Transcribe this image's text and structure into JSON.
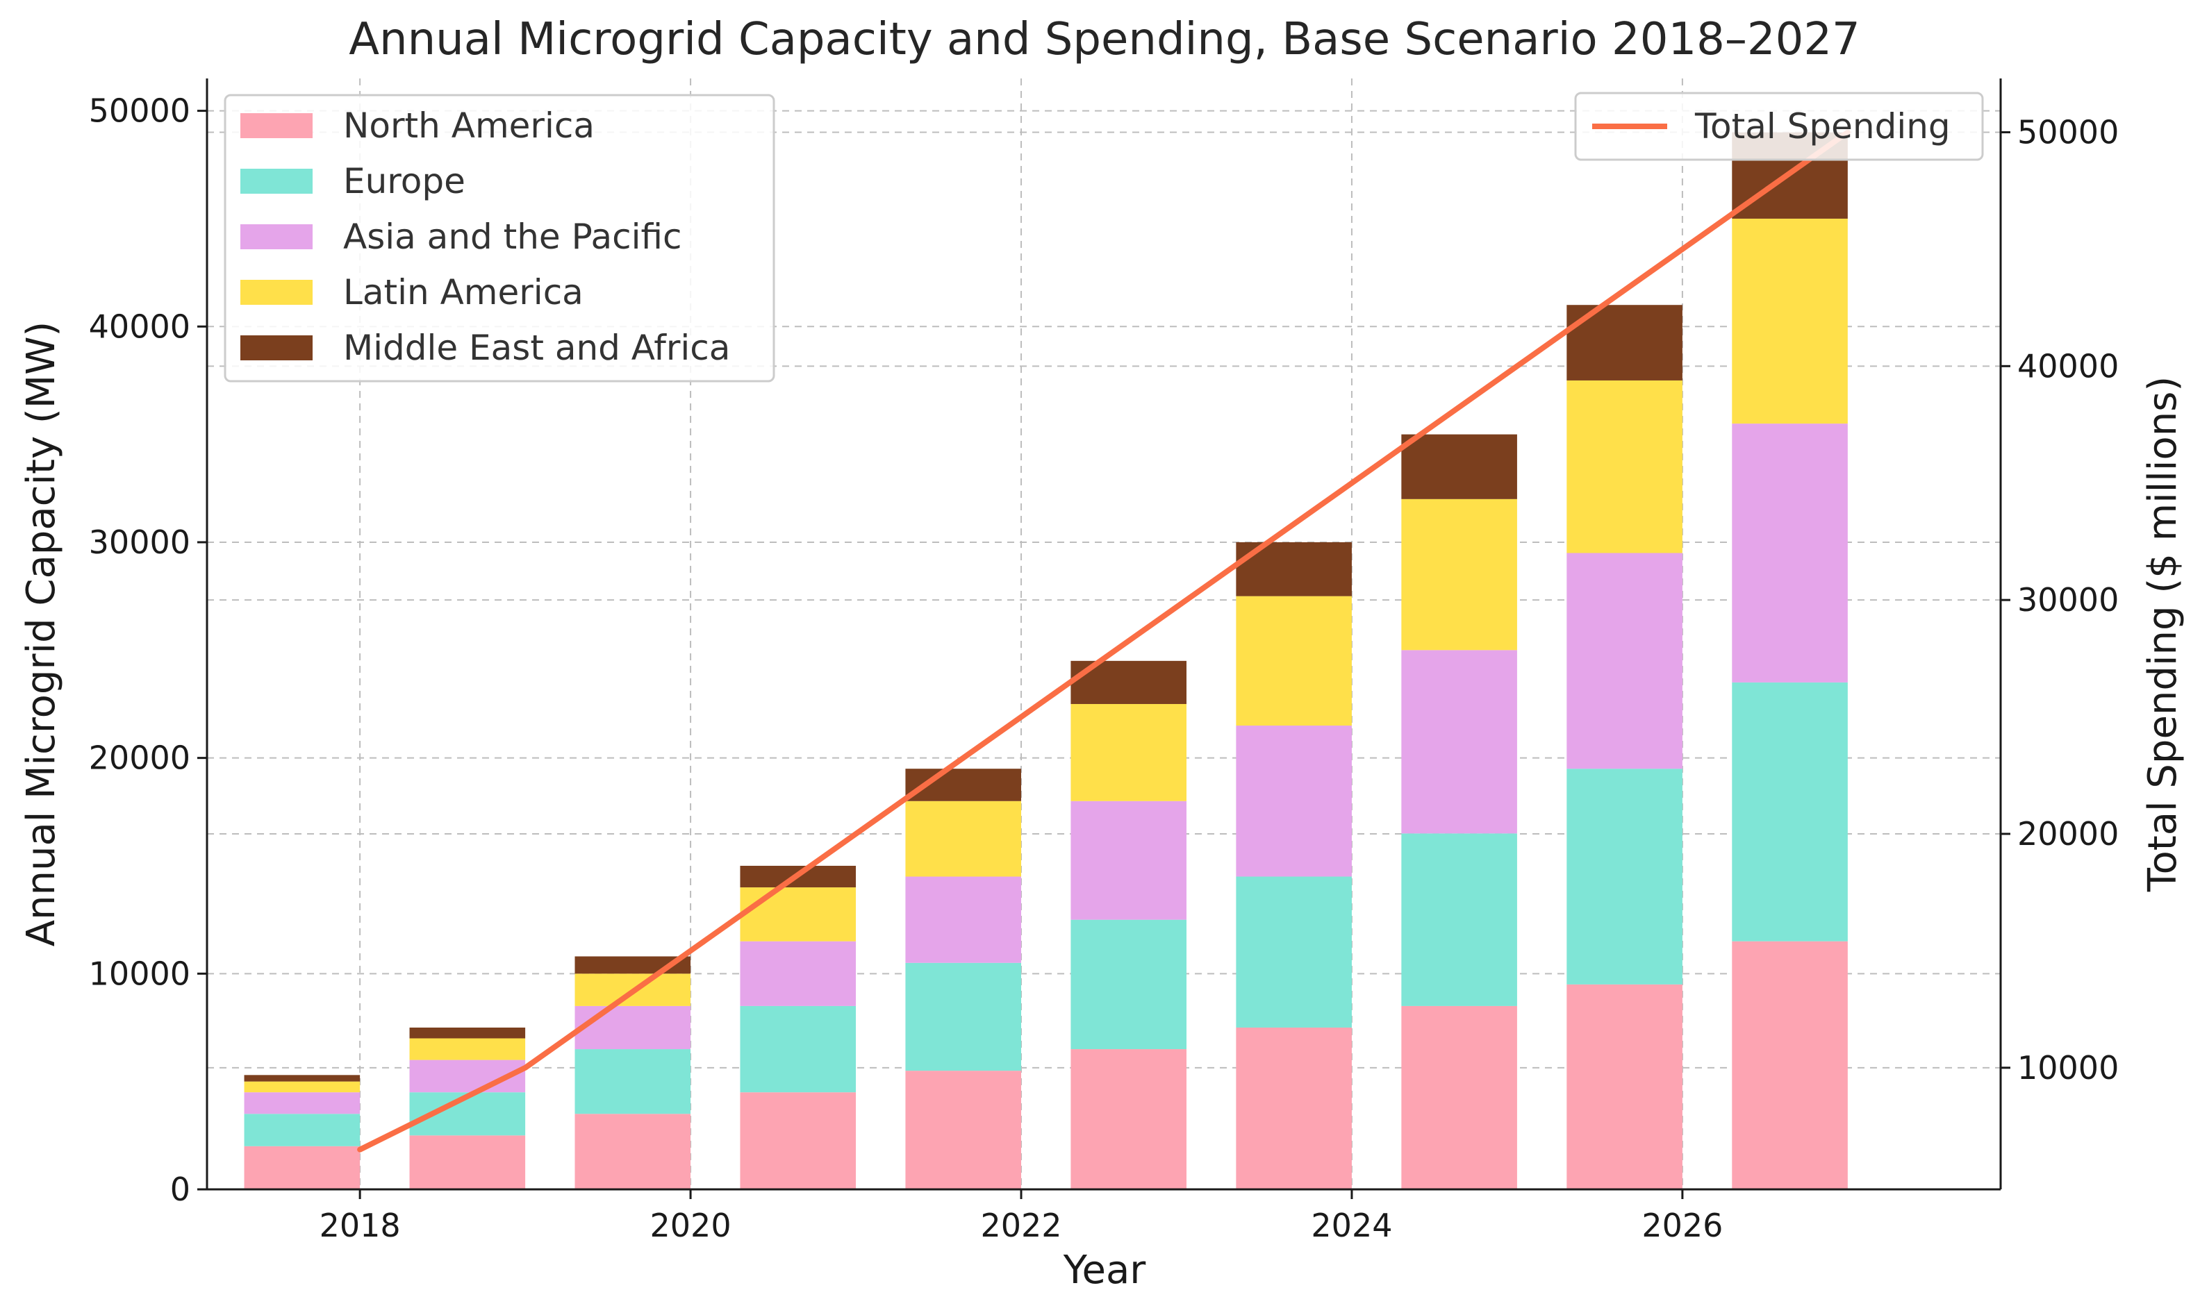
{
  "chart_data": {
    "type": "bar",
    "title": "Annual Microgrid Capacity and Spending, Base Scenario 2018–2027",
    "xlabel": "Year",
    "ylabel": "Annual Microgrid Capacity (MW)",
    "y2label": "Total Spending ($ millions)",
    "x": [
      2018,
      2019,
      2020,
      2021,
      2022,
      2023,
      2024,
      2025,
      2026,
      2027
    ],
    "x_ticks": [
      "2018",
      "2020",
      "2022",
      "2024",
      "2026"
    ],
    "ylim": [
      0,
      51500
    ],
    "y_ticks": [
      "0",
      "10000",
      "20000",
      "30000",
      "40000",
      "50000"
    ],
    "y2lim": [
      4800,
      52300
    ],
    "y2_ticks": [
      "10000",
      "20000",
      "30000",
      "40000",
      "50000"
    ],
    "stacked": true,
    "grid": true,
    "series": [
      {
        "name": "North America",
        "color": "#fda4b2",
        "values": [
          2000,
          2500,
          3500,
          4500,
          5500,
          6500,
          7500,
          8500,
          9500,
          11500
        ]
      },
      {
        "name": "Europe",
        "color": "#7fe5d6",
        "values": [
          1500,
          2000,
          3000,
          4000,
          5000,
          6000,
          7000,
          8000,
          10000,
          12000
        ]
      },
      {
        "name": "Asia and the Pacific",
        "color": "#e5a5ea",
        "values": [
          1000,
          1500,
          2000,
          3000,
          4000,
          5500,
          7000,
          8500,
          10000,
          12000
        ]
      },
      {
        "name": "Latin America",
        "color": "#ffe04a",
        "values": [
          500,
          1000,
          1500,
          2500,
          3500,
          4500,
          6000,
          7000,
          8000,
          9500
        ]
      },
      {
        "name": "Middle East and Africa",
        "color": "#7b3f1e",
        "values": [
          300,
          500,
          800,
          1000,
          1500,
          2000,
          2500,
          3000,
          3500,
          4000
        ]
      }
    ],
    "line_series": {
      "name": "Total Spending",
      "color": "#fa6e45",
      "values": [
        6500,
        10000,
        15000,
        20000,
        25000,
        30000,
        35000,
        40000,
        45000,
        50000
      ]
    },
    "legend_left_position": "upper-left",
    "legend_right_position": "upper-right"
  }
}
